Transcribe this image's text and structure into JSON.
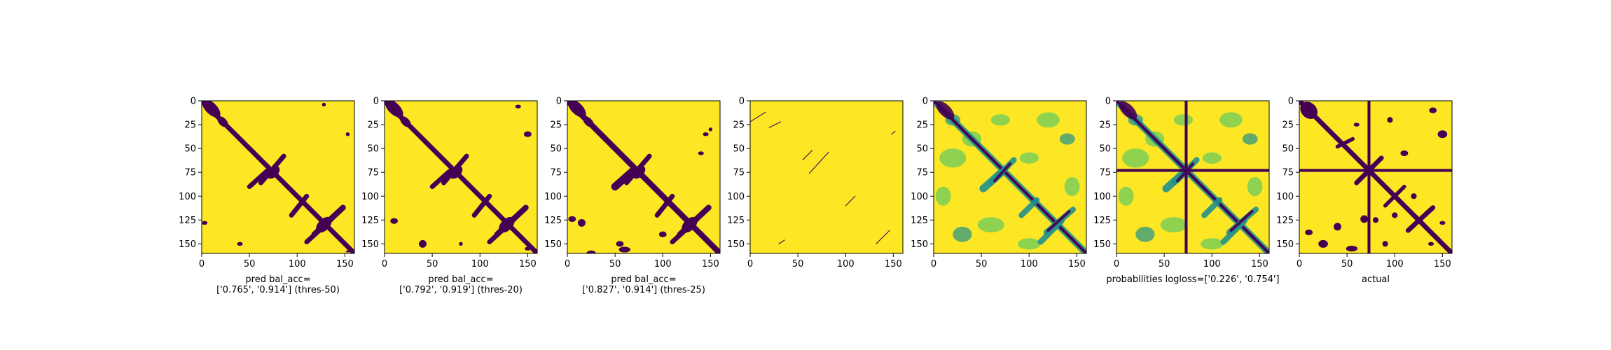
{
  "figure": {
    "panel_count": 7,
    "colormap": "viridis",
    "colors": {
      "low": "#440154",
      "mid_low": "#3b528b",
      "mid": "#21918c",
      "mid_high": "#5ec962",
      "high": "#fde725"
    }
  },
  "chart_data": [
    {
      "type": "heatmap",
      "cmap": "viridis",
      "binary": true,
      "xlim": [
        0,
        160
      ],
      "ylim": [
        160,
        0
      ],
      "xticks": [
        "0",
        "50",
        "100",
        "150"
      ],
      "yticks": [
        "0",
        "25",
        "50",
        "75",
        "100",
        "125",
        "150"
      ],
      "xlabel_lines": [
        "pred bal_acc=",
        "['0.765', '0.914'] (thres-50)"
      ]
    },
    {
      "type": "heatmap",
      "cmap": "viridis",
      "binary": true,
      "xlim": [
        0,
        160
      ],
      "ylim": [
        160,
        0
      ],
      "xticks": [
        "0",
        "50",
        "100",
        "150"
      ],
      "yticks": [
        "0",
        "25",
        "50",
        "75",
        "100",
        "125",
        "150"
      ],
      "xlabel_lines": [
        "pred bal_acc=",
        "['0.792', '0.919'] (thres-20)"
      ]
    },
    {
      "type": "heatmap",
      "cmap": "viridis",
      "binary": true,
      "xlim": [
        0,
        160
      ],
      "ylim": [
        160,
        0
      ],
      "xticks": [
        "0",
        "50",
        "100",
        "150"
      ],
      "yticks": [
        "0",
        "25",
        "50",
        "75",
        "100",
        "125",
        "150"
      ],
      "xlabel_lines": [
        "pred bal_acc=",
        "['0.827', '0.914'] (thres-25)"
      ]
    },
    {
      "type": "heatmap",
      "cmap": "viridis",
      "binary": true,
      "xlim": [
        0,
        160
      ],
      "ylim": [
        160,
        0
      ],
      "xticks": [
        "0",
        "50",
        "100",
        "150"
      ],
      "yticks": [
        "0",
        "25",
        "50",
        "75",
        "100",
        "125",
        "150"
      ],
      "xlabel_lines": []
    },
    {
      "type": "heatmap",
      "cmap": "viridis",
      "binary": false,
      "xlim": [
        0,
        160
      ],
      "ylim": [
        160,
        0
      ],
      "xticks": [
        "0",
        "50",
        "100",
        "150"
      ],
      "yticks": [
        "0",
        "25",
        "50",
        "75",
        "100",
        "125",
        "150"
      ],
      "xlabel_lines": []
    },
    {
      "type": "heatmap",
      "cmap": "viridis",
      "binary": false,
      "xlim": [
        0,
        160
      ],
      "ylim": [
        160,
        0
      ],
      "xticks": [
        "0",
        "50",
        "100",
        "150"
      ],
      "yticks": [
        "0",
        "25",
        "50",
        "75",
        "100",
        "125",
        "150"
      ],
      "xlabel_lines": [
        "probabilities logloss=['0.226', '0.754']"
      ]
    },
    {
      "type": "heatmap",
      "cmap": "viridis",
      "binary": true,
      "xlim": [
        0,
        160
      ],
      "ylim": [
        160,
        0
      ],
      "xticks": [
        "0",
        "50",
        "100",
        "150"
      ],
      "yticks": [
        "0",
        "25",
        "50",
        "75",
        "100",
        "125",
        "150"
      ],
      "xlabel_lines": [
        "actual"
      ]
    }
  ]
}
